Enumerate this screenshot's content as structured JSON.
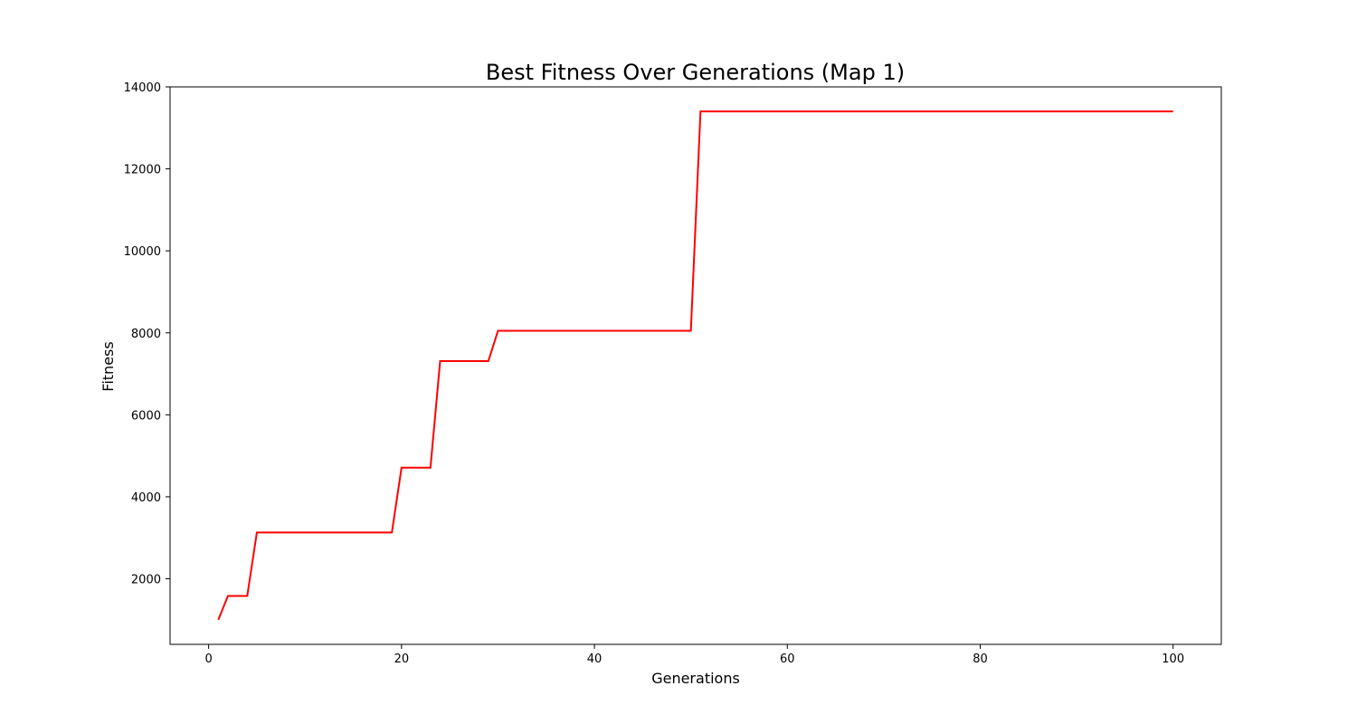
{
  "chart_data": {
    "type": "line",
    "title": "Best Fitness Over Generations (Map 1)",
    "xlabel": "Generations",
    "ylabel": "Fitness",
    "xlim": [
      -4,
      105
    ],
    "ylim": [
      400,
      14000
    ],
    "xticks": [
      0,
      20,
      40,
      60,
      80,
      100
    ],
    "yticks": [
      2000,
      4000,
      6000,
      8000,
      10000,
      12000,
      14000
    ],
    "grid": false,
    "line_color": "#ff0000",
    "series": [
      {
        "x": [
          1,
          2,
          3,
          4,
          5,
          6,
          7,
          8,
          9,
          10,
          11,
          12,
          13,
          14,
          15,
          16,
          17,
          18,
          19,
          20,
          21,
          22,
          23,
          24,
          25,
          26,
          27,
          28,
          29,
          30,
          31,
          32,
          33,
          34,
          35,
          36,
          37,
          38,
          39,
          40,
          41,
          42,
          43,
          44,
          45,
          46,
          47,
          48,
          49,
          50,
          51,
          52,
          53,
          54,
          55,
          56,
          57,
          58,
          59,
          60,
          61,
          62,
          63,
          64,
          65,
          66,
          67,
          68,
          69,
          70,
          71,
          72,
          73,
          74,
          75,
          76,
          77,
          78,
          79,
          80,
          81,
          82,
          83,
          84,
          85,
          86,
          87,
          88,
          89,
          90,
          91,
          92,
          93,
          94,
          95,
          96,
          97,
          98,
          99,
          100
        ],
        "values": [
          1000,
          1580,
          1580,
          1580,
          3130,
          3130,
          3130,
          3130,
          3130,
          3130,
          3130,
          3130,
          3130,
          3130,
          3130,
          3130,
          3130,
          3130,
          3130,
          4710,
          4710,
          4710,
          4710,
          7310,
          7310,
          7310,
          7310,
          7310,
          7310,
          8050,
          8050,
          8050,
          8050,
          8050,
          8050,
          8050,
          8050,
          8050,
          8050,
          8050,
          8050,
          8050,
          8050,
          8050,
          8050,
          8050,
          8050,
          8050,
          8050,
          8050,
          13400,
          13400,
          13400,
          13400,
          13400,
          13400,
          13400,
          13400,
          13400,
          13400,
          13400,
          13400,
          13400,
          13400,
          13400,
          13400,
          13400,
          13400,
          13400,
          13400,
          13400,
          13400,
          13400,
          13400,
          13400,
          13400,
          13400,
          13400,
          13400,
          13400,
          13400,
          13400,
          13400,
          13400,
          13400,
          13400,
          13400,
          13400,
          13400,
          13400,
          13400,
          13400,
          13400,
          13400,
          13400,
          13400,
          13400,
          13400,
          13400,
          13400
        ]
      }
    ]
  }
}
